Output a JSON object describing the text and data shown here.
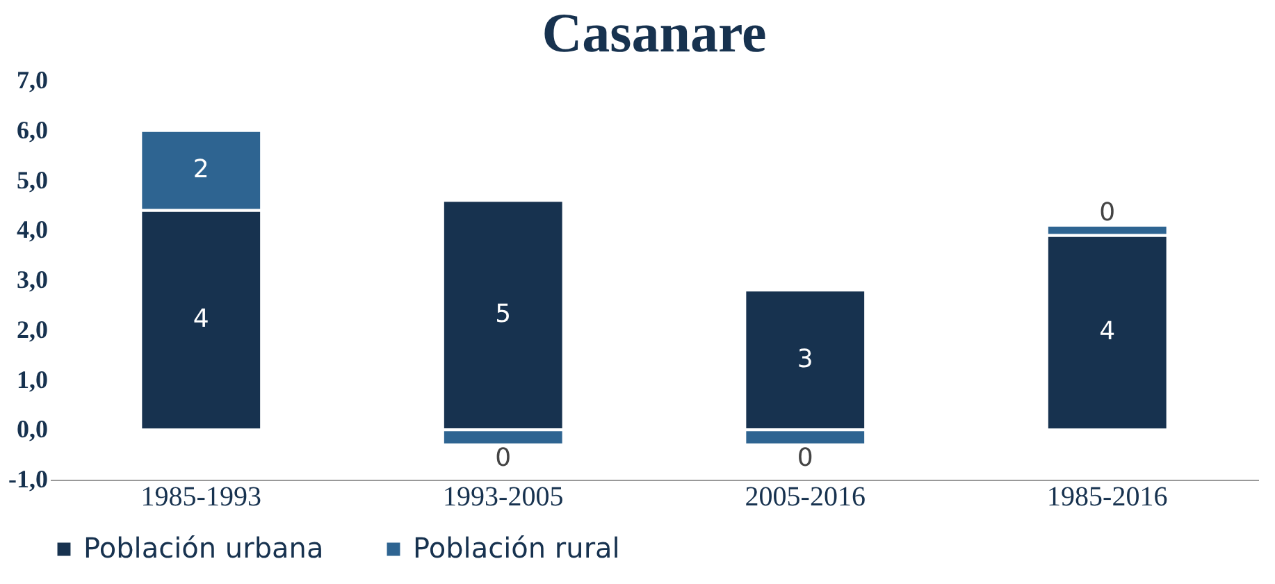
{
  "chart_data": {
    "type": "bar",
    "title": "Casanare",
    "stacked": true,
    "categories": [
      "1985-1993",
      "1993-2005",
      "2005-2016",
      "1985-2016"
    ],
    "series": [
      {
        "name": "Población urbana",
        "color": "#17324f",
        "values": [
          4.4,
          4.6,
          2.8,
          3.9
        ],
        "value_labels": [
          "4",
          "5",
          "3",
          "4"
        ]
      },
      {
        "name": "Población rural",
        "color": "#2e6491",
        "values": [
          1.6,
          -0.3,
          -0.3,
          0.2
        ],
        "value_labels": [
          "2",
          "0",
          "0",
          "0"
        ]
      }
    ],
    "ylim": [
      -1,
      7
    ],
    "yticks": [
      {
        "value": -1,
        "label": "-1,0"
      },
      {
        "value": 0,
        "label": "0,0"
      },
      {
        "value": 1,
        "label": "1,0"
      },
      {
        "value": 2,
        "label": "2,0"
      },
      {
        "value": 3,
        "label": "3,0"
      },
      {
        "value": 4,
        "label": "4,0"
      },
      {
        "value": 5,
        "label": "5,0"
      },
      {
        "value": 6,
        "label": "6,0"
      },
      {
        "value": 7,
        "label": "7,0"
      }
    ],
    "grid": false,
    "legend": "bottom"
  }
}
